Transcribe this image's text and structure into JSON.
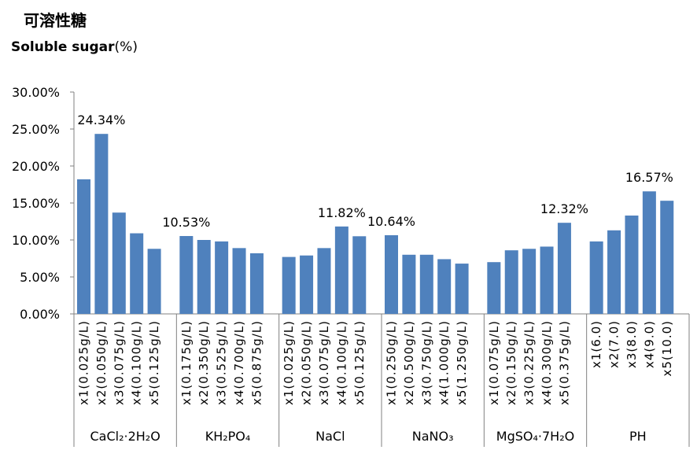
{
  "title_cn": "可溶性糖",
  "title_en": "Soluble sugar",
  "title_unit": "(%)",
  "colors": {
    "bar": "#4f81bd",
    "axis": "#808080",
    "text": "#000000"
  },
  "chart_data": {
    "type": "bar",
    "ylim": [
      0,
      30
    ],
    "y_ticks": [
      0,
      5,
      10,
      15,
      20,
      25,
      30
    ],
    "y_tick_labels": [
      "0.00%",
      "5.00%",
      "10.00%",
      "15.00%",
      "20.00%",
      "25.00%",
      "30.00%"
    ],
    "grid": false,
    "legend": "none",
    "groups": [
      {
        "name": "CaCl₂·2H₂O",
        "categories": [
          "x1(0.025g/L)",
          "x2(0.050g/L)",
          "x3(0.075g/L)",
          "x4(0.100g/L)",
          "x5(0.125g/L)"
        ],
        "values": [
          18.2,
          24.34,
          13.7,
          10.9,
          8.8
        ],
        "label_index": 1,
        "label": "24.34%"
      },
      {
        "name": "KH₂PO₄",
        "categories": [
          "x1(0.175g/L)",
          "x2(0.350g/L)",
          "x3(0.525g/L)",
          "x4(0.700g/L)",
          "x5(0.875g/L)"
        ],
        "values": [
          10.53,
          10.0,
          9.8,
          8.9,
          8.2
        ],
        "label_index": 0,
        "label": "10.53%"
      },
      {
        "name": "NaCl",
        "categories": [
          "x1(0.025g/L)",
          "x2(0.050g/L)",
          "x3(0.075g/L)",
          "x4(0.100g/L)",
          "x5(0.125g/L)"
        ],
        "values": [
          7.7,
          7.9,
          8.9,
          11.82,
          10.5
        ],
        "label_index": 3,
        "label": "11.82%"
      },
      {
        "name": "NaNO₃",
        "categories": [
          "x1(0.250g/L)",
          "x2(0.500g/L)",
          "x3(0.750g/L)",
          "x4(1.000g/L)",
          "x5(1.250g/L)"
        ],
        "values": [
          10.64,
          8.0,
          8.0,
          7.4,
          6.8
        ],
        "label_index": 0,
        "label": "10.64%"
      },
      {
        "name": "MgSO₄·7H₂O",
        "categories": [
          "x1(0.075g/L)",
          "x2(0.150g/L)",
          "x3(0.225g/L)",
          "x4(0.300g/L)",
          "x5(0.375g/L)"
        ],
        "values": [
          7.0,
          8.6,
          8.8,
          9.1,
          12.32
        ],
        "label_index": 4,
        "label": "12.32%"
      },
      {
        "name": "PH",
        "categories": [
          "x1(6.0)",
          "x2(7.0)",
          "x3(8.0)",
          "x4(9.0)",
          "x5(10.0)"
        ],
        "values": [
          9.8,
          11.3,
          13.3,
          16.57,
          15.3
        ],
        "label_index": 3,
        "label": "16.57%"
      }
    ]
  }
}
